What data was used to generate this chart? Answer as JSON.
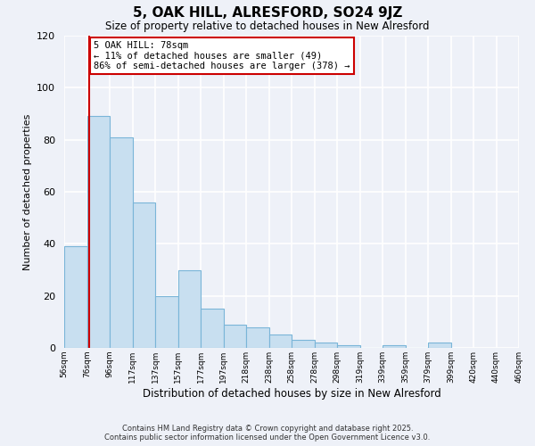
{
  "title": "5, OAK HILL, ALRESFORD, SO24 9JZ",
  "subtitle": "Size of property relative to detached houses in New Alresford",
  "xlabel": "Distribution of detached houses by size in New Alresford",
  "ylabel": "Number of detached properties",
  "bar_values": [
    39,
    89,
    81,
    56,
    20,
    30,
    15,
    9,
    8,
    5,
    3,
    2,
    1,
    0,
    1,
    0,
    2
  ],
  "bin_labels": [
    "56sqm",
    "76sqm",
    "96sqm",
    "117sqm",
    "137sqm",
    "157sqm",
    "177sqm",
    "197sqm",
    "218sqm",
    "238sqm",
    "258sqm",
    "278sqm",
    "298sqm",
    "319sqm",
    "339sqm",
    "359sqm",
    "379sqm",
    "399sqm",
    "420sqm",
    "440sqm",
    "460sqm"
  ],
  "bar_color": "#c8dff0",
  "bar_edge_color": "#7ab5d8",
  "ylim": [
    0,
    120
  ],
  "yticks": [
    0,
    20,
    40,
    60,
    80,
    100,
    120
  ],
  "property_line_color": "#cc0000",
  "annotation_text": "5 OAK HILL: 78sqm\n← 11% of detached houses are smaller (49)\n86% of semi-detached houses are larger (378) →",
  "annotation_box_color": "#ffffff",
  "annotation_box_edge_color": "#cc0000",
  "footer_line1": "Contains HM Land Registry data © Crown copyright and database right 2025.",
  "footer_line2": "Contains public sector information licensed under the Open Government Licence v3.0.",
  "background_color": "#eef1f8",
  "grid_color": "#ffffff"
}
